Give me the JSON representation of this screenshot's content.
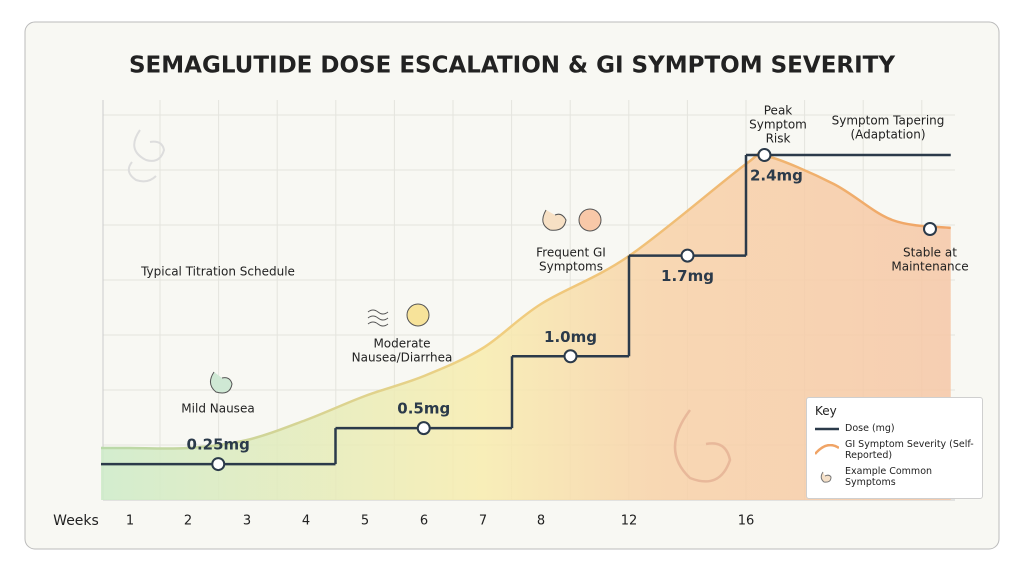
{
  "chart_data": {
    "type": "dose-severity",
    "title": "SEMAGLUTIDE DOSE ESCALATION & GI SYMPTOM SEVERITY",
    "x_label": "Weeks",
    "xlim": [
      0.5,
      23
    ],
    "xticks": [
      1,
      2,
      3,
      4,
      5,
      6,
      7,
      8,
      12,
      16
    ],
    "series": [
      {
        "name": "Dose (mg)",
        "color": "#2b3a4a",
        "style": "step",
        "x": [
          0.5,
          4.5,
          7.5,
          12,
          16
        ],
        "values": [
          0.25,
          0.5,
          1.0,
          1.7,
          2.4
        ],
        "value_labels": [
          "0.25mg",
          "0.5mg",
          "1.0mg",
          "1.7mg",
          "2.4mg"
        ]
      },
      {
        "name": "GI Symptom Severity (Self-Reported)",
        "color": "#f0a466",
        "style": "area",
        "x": [
          0.5,
          1,
          2,
          3,
          4,
          5,
          6,
          7,
          8,
          12,
          16,
          16.7,
          19,
          21,
          23
        ],
        "values": [
          13,
          13,
          13,
          15,
          20,
          26,
          31,
          38,
          49,
          61,
          84,
          86,
          79,
          70,
          68
        ]
      }
    ],
    "annotations": [
      [
        "Typical Titration Schedule"
      ],
      [
        "Mild Nausea"
      ],
      [
        "Moderate",
        "Nausea/Diarrhea"
      ],
      [
        "Frequent GI",
        "Symptoms"
      ],
      [
        "Peak",
        "Symptom",
        "Risk"
      ],
      [
        "Symptom Tapering",
        "(Adaptation)"
      ],
      [
        "Stable at",
        "Maintenance"
      ]
    ],
    "legend": {
      "title": "Key",
      "extra": "Example Common Symptoms",
      "position": "lower right"
    }
  }
}
